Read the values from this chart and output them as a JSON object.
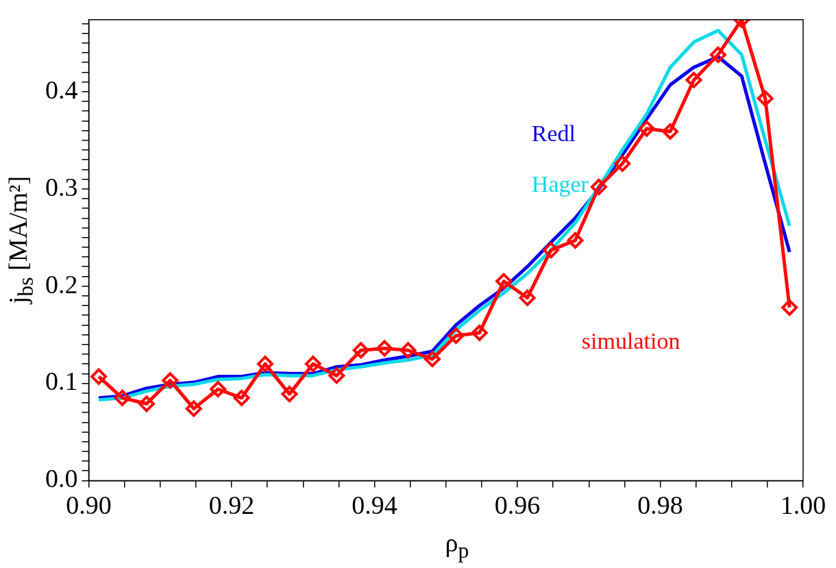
{
  "chart_data": {
    "type": "line",
    "xlabel": "ρ$_{p}$",
    "ylabel": "j$_{bs}$ [MA/m²]",
    "x": [
      0.9014,
      0.9047,
      0.9081,
      0.9114,
      0.9147,
      0.9181,
      0.9214,
      0.9247,
      0.9281,
      0.9314,
      0.9347,
      0.9381,
      0.9414,
      0.9447,
      0.9481,
      0.9514,
      0.9547,
      0.9581,
      0.9614,
      0.9647,
      0.9681,
      0.9714,
      0.9747,
      0.9781,
      0.9814,
      0.9847,
      0.9881,
      0.9914,
      0.9947,
      0.9981
    ],
    "series": [
      {
        "name": "Redl",
        "color": "#0a00e8",
        "marker": "none",
        "values": [
          0.085,
          0.087,
          0.095,
          0.099,
          0.101,
          0.107,
          0.107,
          0.111,
          0.11,
          0.11,
          0.117,
          0.119,
          0.124,
          0.128,
          0.133,
          0.16,
          0.18,
          0.198,
          0.22,
          0.245,
          0.27,
          0.3,
          0.335,
          0.372,
          0.407,
          0.425,
          0.436,
          0.416,
          0.326,
          0.235
        ]
      },
      {
        "name": "Hager",
        "color": "#10d8e8",
        "marker": "none",
        "values": [
          0.083,
          0.085,
          0.092,
          0.097,
          0.099,
          0.104,
          0.105,
          0.109,
          0.108,
          0.108,
          0.114,
          0.117,
          0.121,
          0.124,
          0.129,
          0.155,
          0.175,
          0.193,
          0.213,
          0.237,
          0.265,
          0.302,
          0.34,
          0.377,
          0.425,
          0.451,
          0.463,
          0.438,
          0.35,
          0.262
        ]
      },
      {
        "name": "simulation",
        "color": "#ff0a0a",
        "marker": "diamond",
        "values": [
          0.107,
          0.085,
          0.079,
          0.103,
          0.074,
          0.094,
          0.085,
          0.12,
          0.089,
          0.12,
          0.108,
          0.134,
          0.136,
          0.134,
          0.125,
          0.149,
          0.152,
          0.205,
          0.188,
          0.237,
          0.247,
          0.302,
          0.326,
          0.362,
          0.359,
          0.412,
          0.438,
          0.474,
          0.393,
          0.178
        ]
      }
    ],
    "xlim": [
      0.9,
      1.0
    ],
    "ylim": [
      0,
      0.474
    ],
    "xticks": [
      {
        "value": 0.9,
        "label": "0.90"
      },
      {
        "value": 0.92,
        "label": "0.92"
      },
      {
        "value": 0.94,
        "label": "0.94"
      },
      {
        "value": 0.96,
        "label": "0.96"
      },
      {
        "value": 0.98,
        "label": "0.98"
      },
      {
        "value": 1.0,
        "label": "1.00"
      }
    ],
    "yticks": [
      {
        "value": 0,
        "label": "0.0"
      },
      {
        "value": 0.1,
        "label": "0.1"
      },
      {
        "value": 0.2,
        "label": "0.2"
      },
      {
        "value": 0.3,
        "label": "0.3"
      },
      {
        "value": 0.4,
        "label": "0.4"
      }
    ],
    "grid": false,
    "legend": false
  }
}
